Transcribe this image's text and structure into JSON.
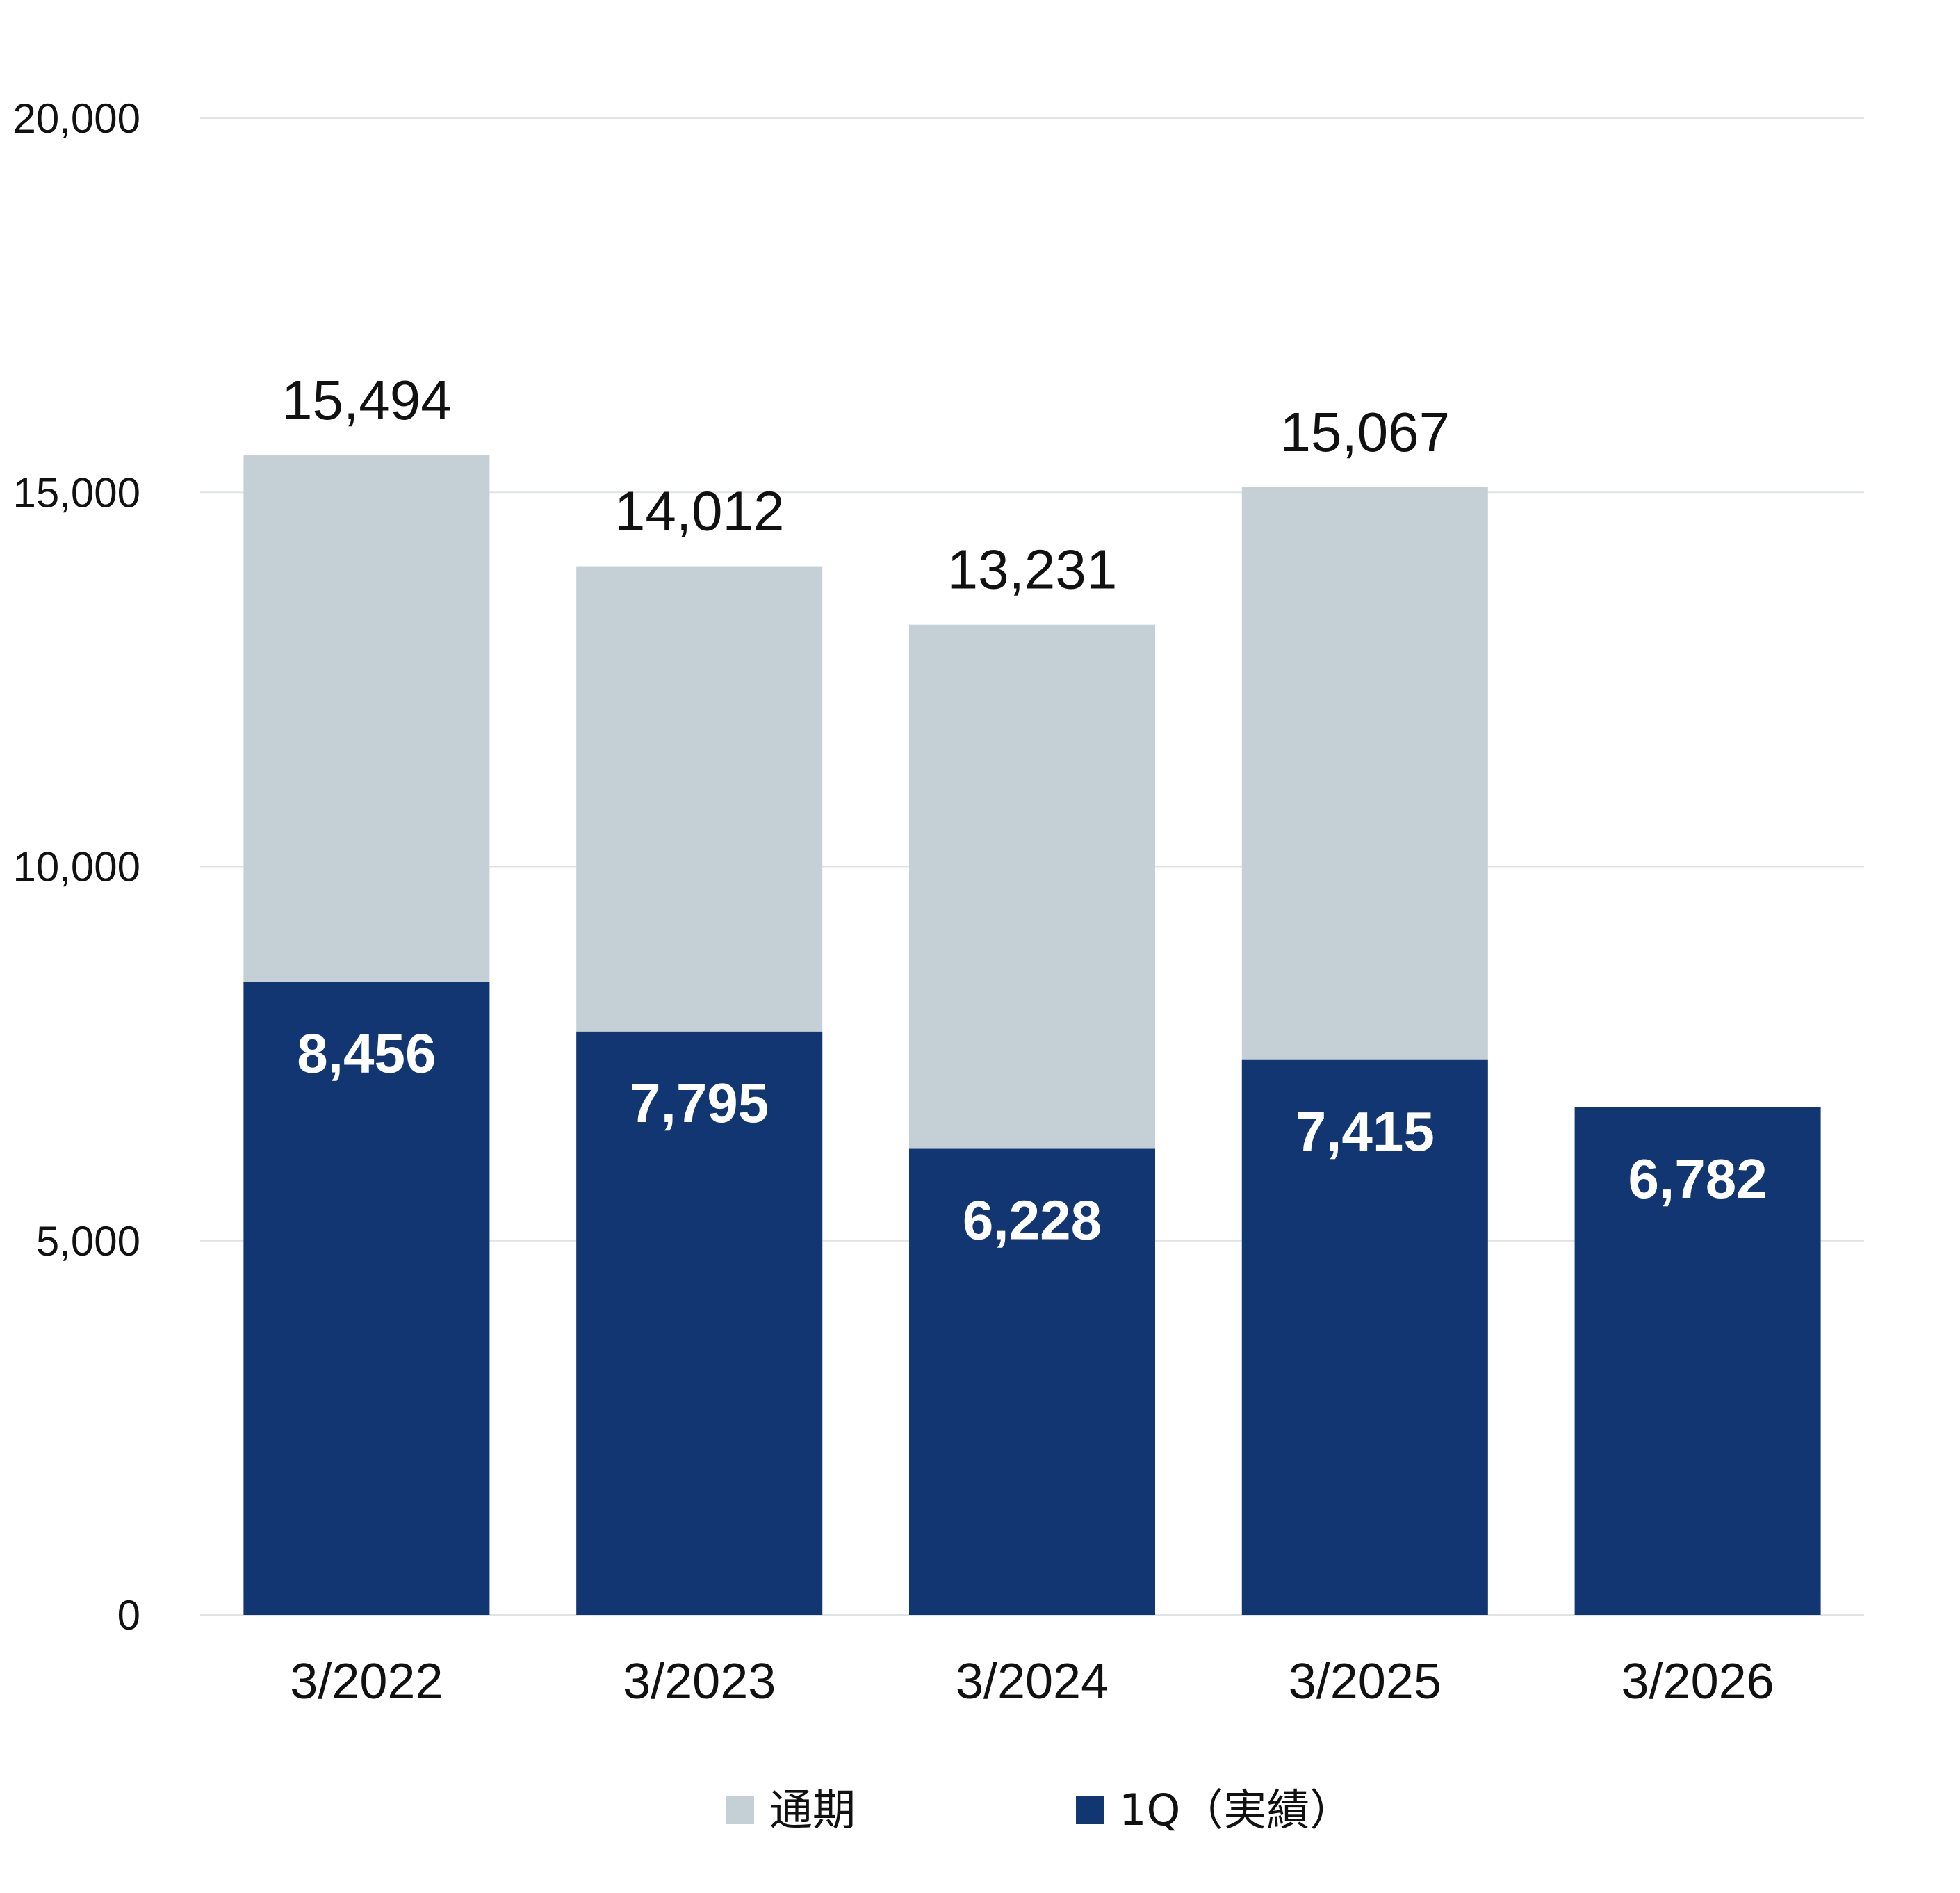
{
  "chart_data": {
    "type": "bar",
    "stacked": false,
    "categories": [
      "3/2022",
      "3/2023",
      "3/2024",
      "3/2025",
      "3/2026"
    ],
    "series": [
      {
        "name": "通期",
        "values": [
          15494,
          14012,
          13231,
          15067,
          null
        ],
        "color": "#c5d0d6"
      },
      {
        "name": "1Q（実績）",
        "values": [
          8456,
          7795,
          6228,
          7415,
          6782
        ],
        "color": "#113672"
      }
    ],
    "total_labels": [
      "15,494",
      "14,012",
      "13,231",
      "15,067",
      ""
    ],
    "q1_labels": [
      "8,456",
      "7,795",
      "6,228",
      "7,415",
      "6,782"
    ],
    "yticks": [
      0,
      5000,
      10000,
      15000,
      20000
    ],
    "ytick_labels": [
      "0",
      "5,000",
      "10,000",
      "15,000",
      "20,000"
    ],
    "ylim": [
      0,
      20000
    ],
    "grid": true,
    "legend_position": "bottom",
    "title": "",
    "xlabel": "",
    "ylabel": ""
  }
}
